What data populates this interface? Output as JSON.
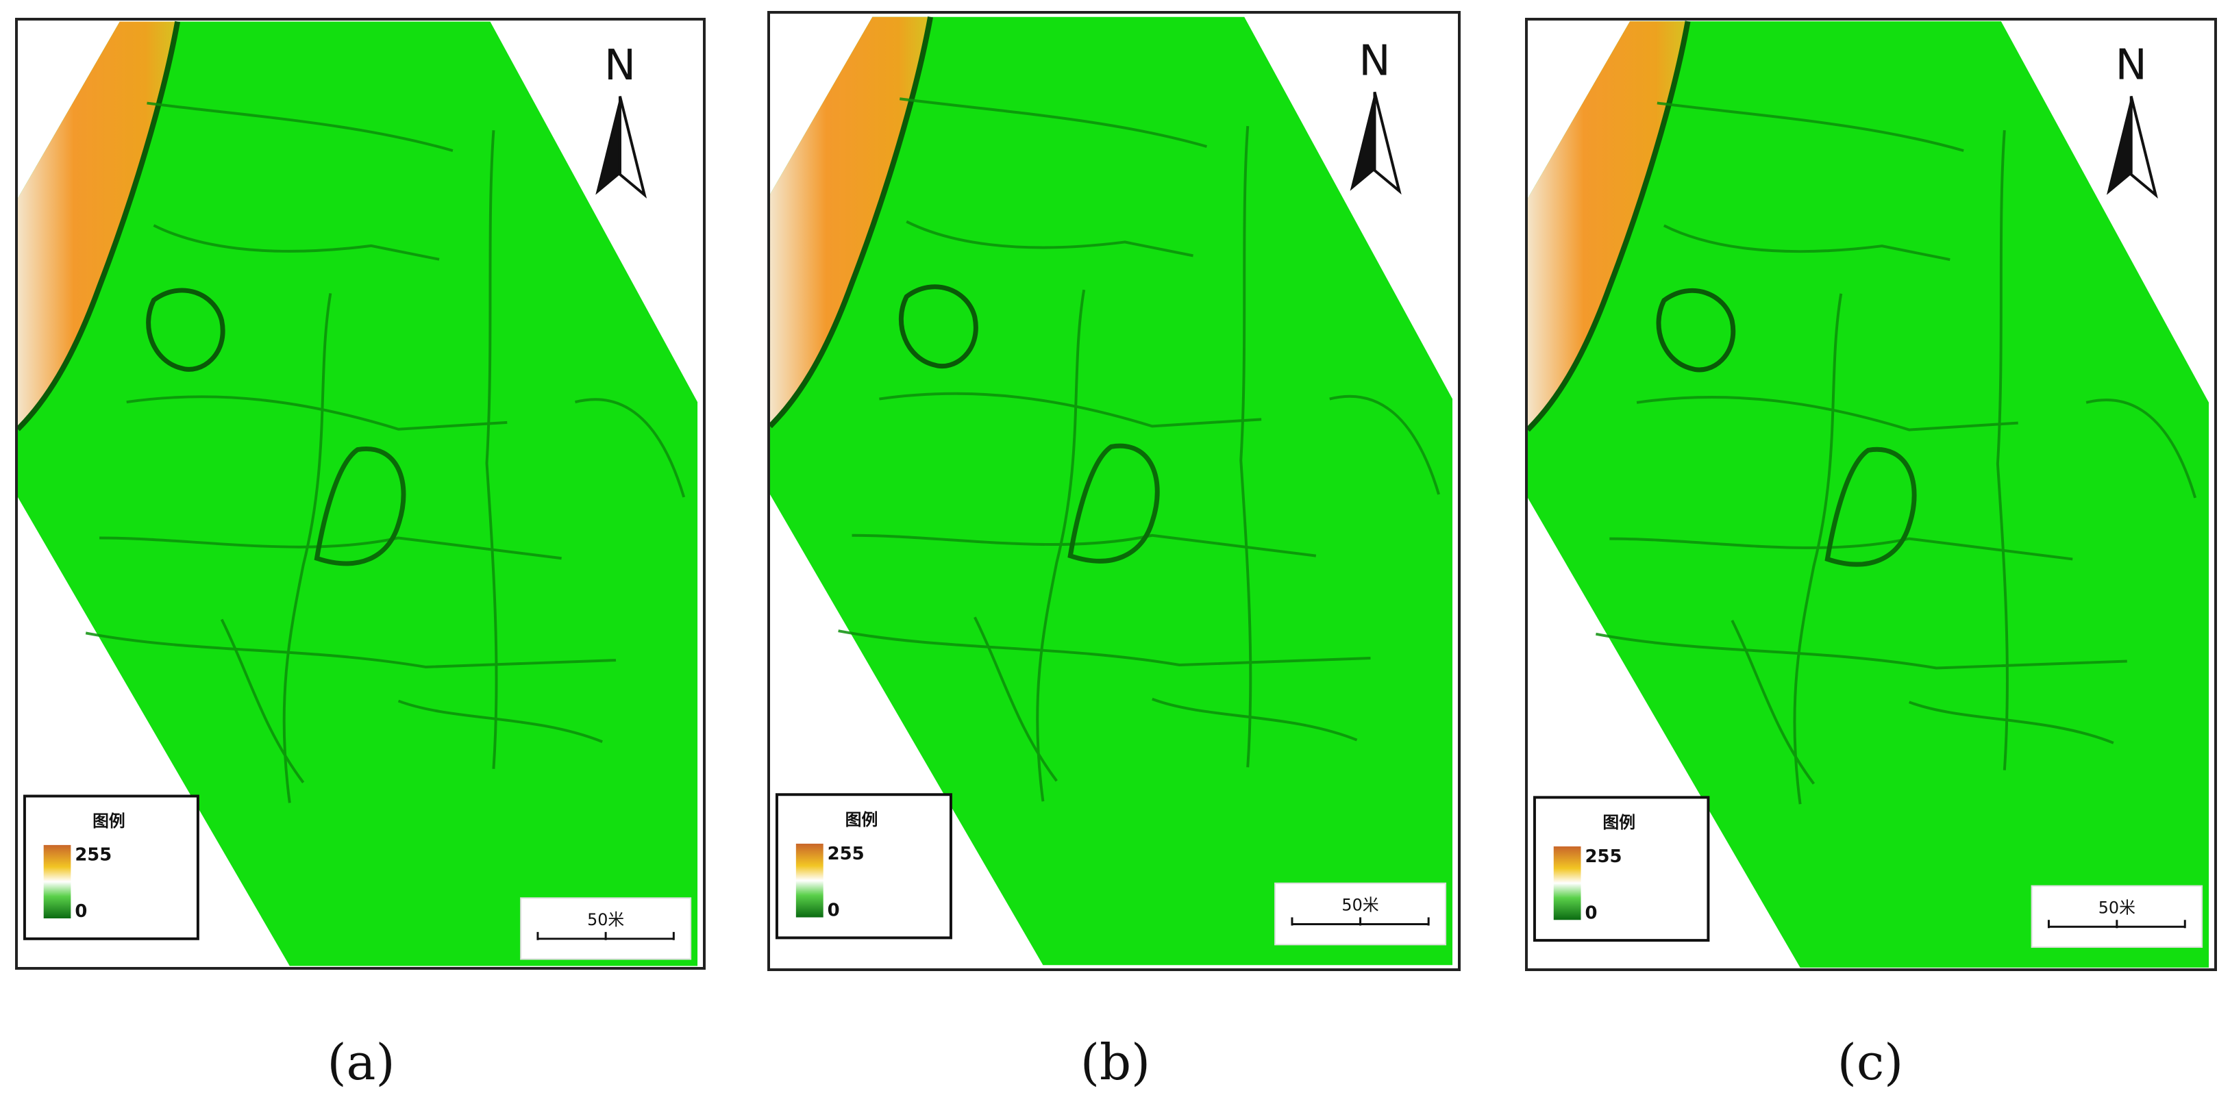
{
  "panels": [
    {
      "caption": "(a)",
      "north_label": "N",
      "legend": {
        "title": "图例",
        "max_label": "255",
        "min_label": "0"
      },
      "scalebar": {
        "label": "50米"
      }
    },
    {
      "caption": "(b)",
      "north_label": "N",
      "legend": {
        "title": "图例",
        "max_label": "255",
        "min_label": "0"
      },
      "scalebar": {
        "label": "50米"
      }
    },
    {
      "caption": "(c)",
      "north_label": "N",
      "legend": {
        "title": "图例",
        "max_label": "255",
        "min_label": "0"
      },
      "scalebar": {
        "label": "50米"
      }
    }
  ],
  "colors": {
    "terrain_base": "#12df0f",
    "terrain_dark": "#0c8f0a",
    "bank_orange": "#f08a1e",
    "bank_yellow": "#f3c21c",
    "legend_high": "#c9662a",
    "legend_low": "#0b6b12",
    "frame": "#222222"
  },
  "legend_ramp_icon": "elevation-color-ramp",
  "north_arrow_icon": "north-arrow-icon"
}
